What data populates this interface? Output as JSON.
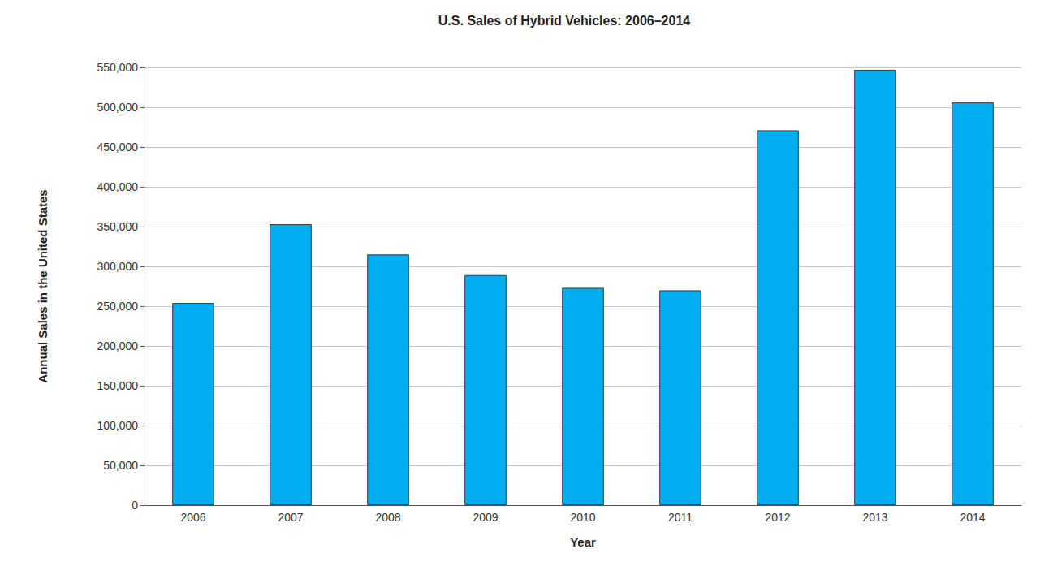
{
  "chart_data": {
    "type": "bar",
    "title": "U.S. Sales of Hybrid Vehicles: 2006–2014",
    "x_label": "Year",
    "y_label": "Annual Sales in the United States",
    "categories": [
      "2006",
      "2007",
      "2008",
      "2009",
      "2010",
      "2011",
      "2012",
      "2013",
      "2014"
    ],
    "values": [
      254000,
      353000,
      315000,
      289000,
      273000,
      270000,
      471000,
      547000,
      506000
    ],
    "color": "#00aeef",
    "ylim": [
      0,
      550000
    ],
    "yticks": [
      0,
      {
        "value": 50000,
        "label": "50,000"
      },
      {
        "value": 100000,
        "label": "100,000"
      },
      {
        "value": 150000,
        "label": "150,000"
      },
      {
        "value": 200000,
        "label": "200,000"
      },
      {
        "value": 250000,
        "label": "250,000"
      },
      {
        "value": 300000,
        "label": "300,000"
      },
      {
        "value": 350000,
        "label": "350,000"
      },
      {
        "value": 400000,
        "label": "400,000"
      },
      {
        "value": 450000,
        "label": "450,000"
      },
      {
        "value": 500000,
        "label": "500,000"
      },
      {
        "value": 550000,
        "label": "550,000"
      }
    ],
    "grid": true
  }
}
